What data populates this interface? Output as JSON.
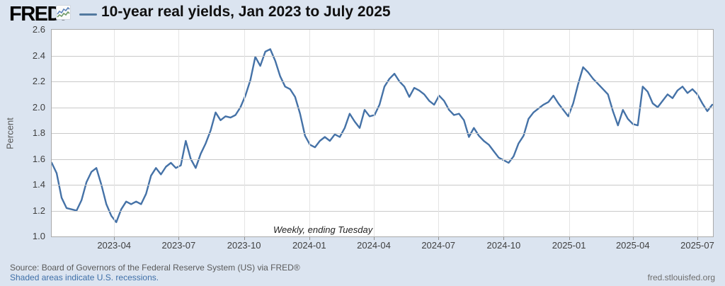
{
  "header": {
    "logo_text": "FRED",
    "logo_registered": "®",
    "logo_icon": "fred-sparkline-icon",
    "title": "10-year real yields, Jan 2023 to July 2025"
  },
  "footer": {
    "source_line": "Source: Board of Governors of the Federal Reserve System (US) via FRED®",
    "recession_note": "Shaded areas indicate U.S. recessions.",
    "watermark": "fred.stlouisfed.org"
  },
  "chart_data": {
    "type": "line",
    "title": "10-year real yields, Jan 2023 to July 2025",
    "xlabel": "",
    "ylabel": "Percent",
    "annotation": "Weekly, ending Tuesday",
    "ylim": [
      1.0,
      2.6
    ],
    "x_range": [
      "2023-01-03",
      "2025-07-22"
    ],
    "grid": true,
    "legend_position": "top-left dash before title",
    "y_ticks": [
      "2.6",
      "2.4",
      "2.2",
      "2.0",
      "1.8",
      "1.6",
      "1.4",
      "1.2",
      "1.0"
    ],
    "x_ticks": [
      {
        "label": "2023-04",
        "date": "2023-04-01"
      },
      {
        "label": "2023-07",
        "date": "2023-07-01"
      },
      {
        "label": "2023-10",
        "date": "2023-10-01"
      },
      {
        "label": "2024-01",
        "date": "2024-01-01"
      },
      {
        "label": "2024-04",
        "date": "2024-04-01"
      },
      {
        "label": "2024-07",
        "date": "2024-07-01"
      },
      {
        "label": "2024-10",
        "date": "2024-10-01"
      },
      {
        "label": "2025-01",
        "date": "2025-01-01"
      },
      {
        "label": "2025-04",
        "date": "2025-04-01"
      },
      {
        "label": "2025-07",
        "date": "2025-07-01"
      }
    ],
    "colors": {
      "line": "#4572a7",
      "background": "#dbe4f0",
      "plot_background": "#ffffff",
      "gridline": "#c9c9c9"
    },
    "series": [
      {
        "name": "10-year real yield",
        "color": "#4572a7",
        "frequency": "Weekly, ending Tuesday",
        "dates": [
          "2023-01-03",
          "2023-01-10",
          "2023-01-17",
          "2023-01-24",
          "2023-01-31",
          "2023-02-07",
          "2023-02-14",
          "2023-02-21",
          "2023-02-28",
          "2023-03-07",
          "2023-03-14",
          "2023-03-21",
          "2023-03-28",
          "2023-04-04",
          "2023-04-11",
          "2023-04-18",
          "2023-04-25",
          "2023-05-02",
          "2023-05-09",
          "2023-05-16",
          "2023-05-23",
          "2023-05-30",
          "2023-06-06",
          "2023-06-13",
          "2023-06-20",
          "2023-06-27",
          "2023-07-04",
          "2023-07-11",
          "2023-07-18",
          "2023-07-25",
          "2023-08-01",
          "2023-08-08",
          "2023-08-15",
          "2023-08-22",
          "2023-08-29",
          "2023-09-05",
          "2023-09-12",
          "2023-09-19",
          "2023-09-26",
          "2023-10-03",
          "2023-10-10",
          "2023-10-17",
          "2023-10-24",
          "2023-10-31",
          "2023-11-07",
          "2023-11-14",
          "2023-11-21",
          "2023-11-28",
          "2023-12-05",
          "2023-12-12",
          "2023-12-19",
          "2023-12-26",
          "2024-01-02",
          "2024-01-09",
          "2024-01-16",
          "2024-01-23",
          "2024-01-30",
          "2024-02-06",
          "2024-02-13",
          "2024-02-20",
          "2024-02-27",
          "2024-03-05",
          "2024-03-12",
          "2024-03-19",
          "2024-03-26",
          "2024-04-02",
          "2024-04-09",
          "2024-04-16",
          "2024-04-23",
          "2024-04-30",
          "2024-05-07",
          "2024-05-14",
          "2024-05-21",
          "2024-05-28",
          "2024-06-04",
          "2024-06-11",
          "2024-06-18",
          "2024-06-25",
          "2024-07-02",
          "2024-07-09",
          "2024-07-16",
          "2024-07-23",
          "2024-07-30",
          "2024-08-06",
          "2024-08-13",
          "2024-08-20",
          "2024-08-27",
          "2024-09-03",
          "2024-09-10",
          "2024-09-17",
          "2024-09-24",
          "2024-10-01",
          "2024-10-08",
          "2024-10-15",
          "2024-10-22",
          "2024-10-29",
          "2024-11-05",
          "2024-11-12",
          "2024-11-19",
          "2024-11-26",
          "2024-12-03",
          "2024-12-10",
          "2024-12-17",
          "2024-12-24",
          "2024-12-31",
          "2025-01-07",
          "2025-01-14",
          "2025-01-21",
          "2025-01-28",
          "2025-02-04",
          "2025-02-11",
          "2025-02-18",
          "2025-02-25",
          "2025-03-04",
          "2025-03-11",
          "2025-03-18",
          "2025-03-25",
          "2025-04-01",
          "2025-04-08",
          "2025-04-15",
          "2025-04-22",
          "2025-04-29",
          "2025-05-06",
          "2025-05-13",
          "2025-05-20",
          "2025-05-27",
          "2025-06-03",
          "2025-06-10",
          "2025-06-17",
          "2025-06-24",
          "2025-07-01",
          "2025-07-08",
          "2025-07-15",
          "2025-07-22"
        ],
        "values": [
          1.57,
          1.49,
          1.3,
          1.22,
          1.21,
          1.2,
          1.28,
          1.42,
          1.5,
          1.53,
          1.4,
          1.25,
          1.16,
          1.11,
          1.21,
          1.27,
          1.25,
          1.27,
          1.25,
          1.33,
          1.47,
          1.53,
          1.48,
          1.54,
          1.57,
          1.53,
          1.55,
          1.74,
          1.6,
          1.53,
          1.64,
          1.72,
          1.82,
          1.96,
          1.9,
          1.93,
          1.92,
          1.94,
          2.0,
          2.09,
          2.21,
          2.39,
          2.32,
          2.43,
          2.45,
          2.36,
          2.24,
          2.16,
          2.14,
          2.08,
          1.95,
          1.78,
          1.71,
          1.69,
          1.74,
          1.77,
          1.74,
          1.79,
          1.77,
          1.84,
          1.95,
          1.89,
          1.84,
          1.98,
          1.93,
          1.94,
          2.02,
          2.16,
          2.22,
          2.26,
          2.2,
          2.16,
          2.08,
          2.15,
          2.13,
          2.1,
          2.05,
          2.02,
          2.09,
          2.05,
          1.98,
          1.94,
          1.95,
          1.9,
          1.77,
          1.84,
          1.78,
          1.74,
          1.71,
          1.66,
          1.61,
          1.59,
          1.57,
          1.62,
          1.72,
          1.78,
          1.91,
          1.96,
          1.99,
          2.02,
          2.04,
          2.09,
          2.03,
          1.98,
          1.93,
          2.03,
          2.18,
          2.31,
          2.27,
          2.22,
          2.18,
          2.14,
          2.1,
          1.97,
          1.86,
          1.98,
          1.91,
          1.87,
          1.86,
          2.16,
          2.12,
          2.03,
          2.0,
          2.05,
          2.1,
          2.07,
          2.13,
          2.16,
          2.11,
          2.14,
          2.1,
          2.03,
          1.97,
          2.02
        ]
      }
    ]
  }
}
